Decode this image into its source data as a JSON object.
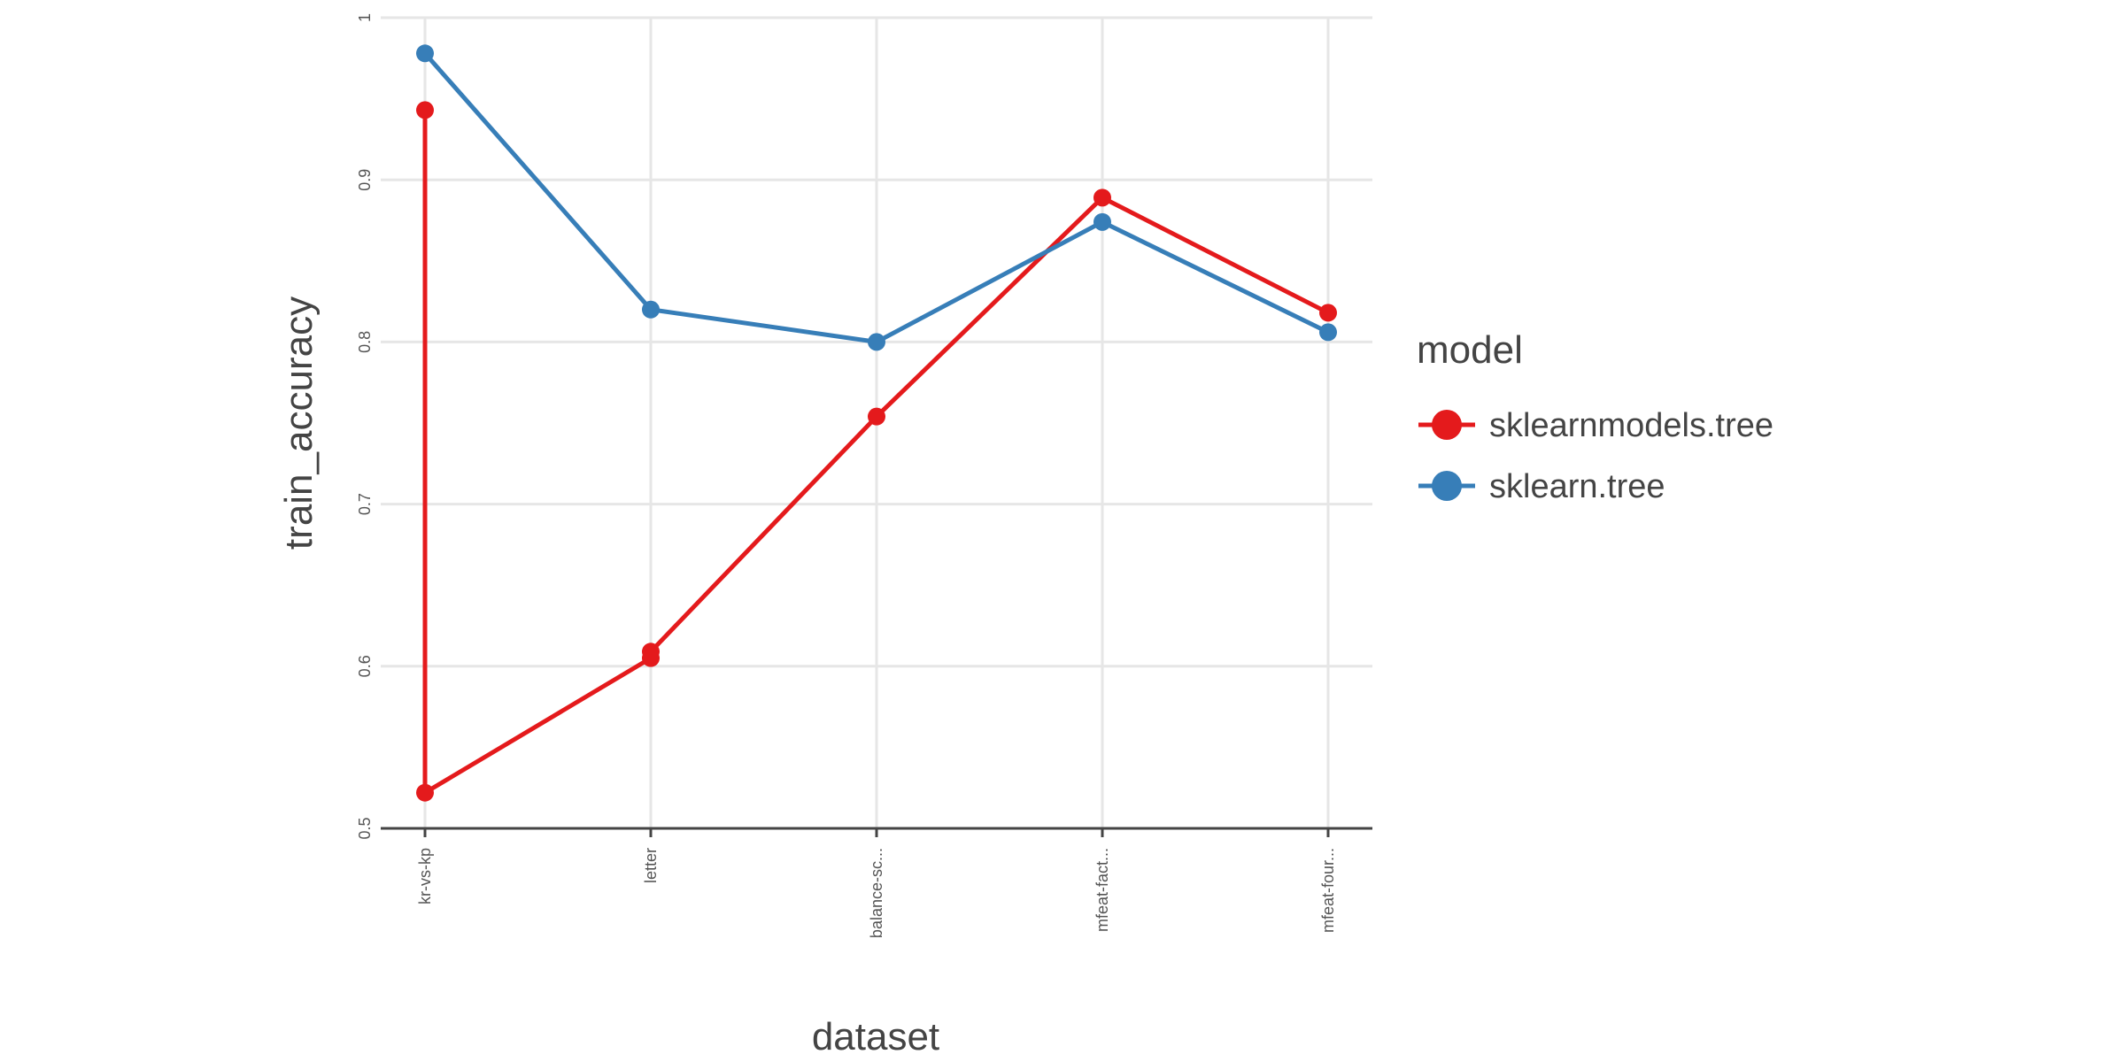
{
  "chart_data": {
    "type": "line",
    "xlabel": "dataset",
    "ylabel": "train_accuracy",
    "ylim": [
      0.5,
      1
    ],
    "yticks": [
      "0.5",
      "0.6",
      "0.7",
      "0.8",
      "0.9",
      "1"
    ],
    "categories": [
      "kr-vs-kp",
      "letter",
      "balance-sc...",
      "mfeat-fact...",
      "mfeat-four..."
    ],
    "grid": true,
    "legend": {
      "title": "model",
      "position": "right"
    },
    "series": [
      {
        "name": "sklearnmodels.tree",
        "color": "#e41a1c",
        "points": [
          {
            "x": "kr-vs-kp",
            "y": 0.943
          },
          {
            "x": "kr-vs-kp",
            "y": 0.522
          },
          {
            "x": "letter",
            "y": 0.605
          },
          {
            "x": "letter",
            "y": 0.609
          },
          {
            "x": "balance-sc...",
            "y": 0.754
          },
          {
            "x": "mfeat-fact...",
            "y": 0.889
          },
          {
            "x": "mfeat-four...",
            "y": 0.818
          }
        ]
      },
      {
        "name": "sklearn.tree",
        "color": "#377eb8",
        "points": [
          {
            "x": "kr-vs-kp",
            "y": 0.978
          },
          {
            "x": "letter",
            "y": 0.82
          },
          {
            "x": "balance-sc...",
            "y": 0.8
          },
          {
            "x": "mfeat-fact...",
            "y": 0.874
          },
          {
            "x": "mfeat-four...",
            "y": 0.806
          }
        ]
      }
    ]
  }
}
